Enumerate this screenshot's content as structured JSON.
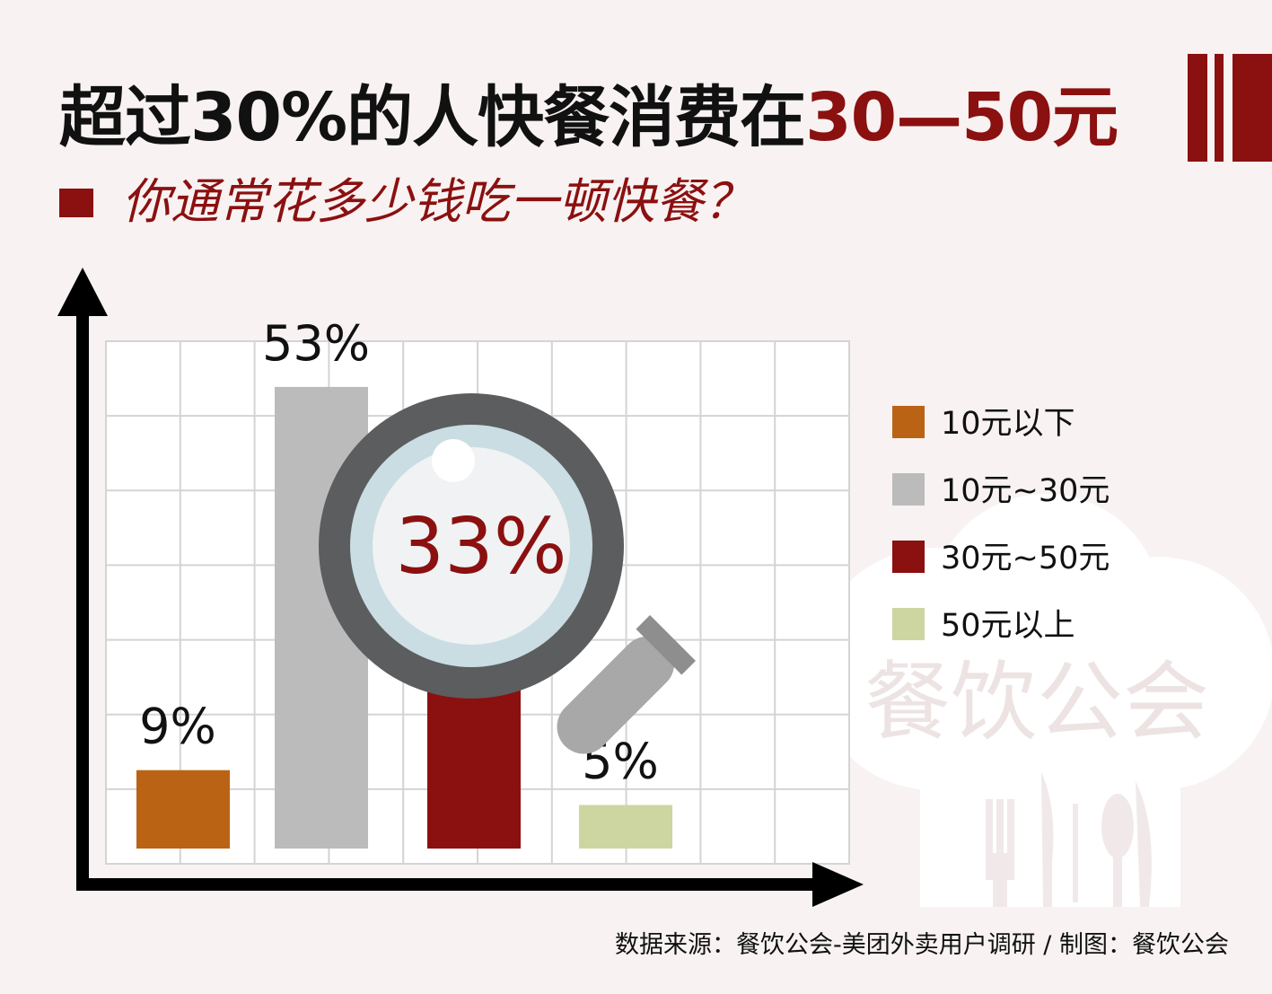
{
  "header": {
    "title_main": "超过30%的人快餐消费在",
    "title_highlight": "30—50元",
    "subtitle": "你通常花多少钱吃一顿快餐？"
  },
  "colors": {
    "accent": "#8b1010",
    "series": [
      "#bb6315",
      "#bbbbbb",
      "#8b1010",
      "#cdd6a0"
    ],
    "lens_frame": "#5c5d5f",
    "lens_glass": "#c5dce2",
    "handle": "#a6a6a6"
  },
  "chart_data": {
    "type": "bar",
    "categories": [
      "10元以下",
      "10元~30元",
      "30元~50元",
      "50元以上"
    ],
    "values": [
      9,
      53,
      33,
      5
    ],
    "value_labels": [
      "9%",
      "53%",
      "33%",
      "5%"
    ],
    "ylim": [
      0,
      60
    ],
    "grid": true,
    "legend_position": "right",
    "highlight_index": 2
  },
  "watermark": "餐饮公会",
  "source": "数据来源：餐饮公会-美团外卖用户调研  /  制图：餐饮公会"
}
